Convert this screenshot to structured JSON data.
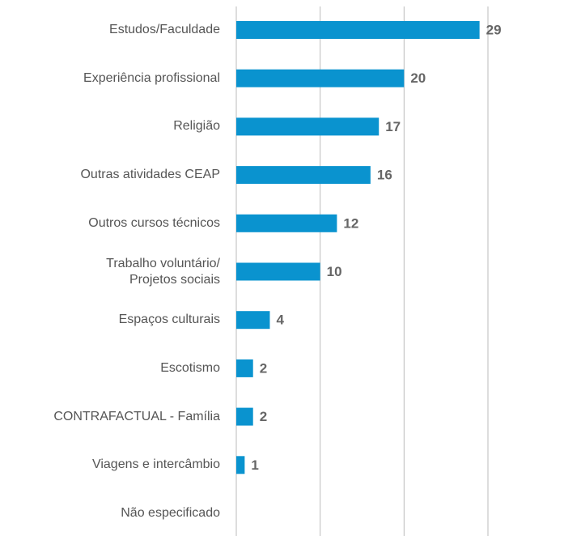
{
  "chart_data": {
    "type": "bar",
    "orientation": "horizontal",
    "categories": [
      "Estudos/Faculdade",
      "Experiência profissional",
      "Religião",
      "Outras atividades CEAP",
      "Outros cursos técnicos",
      "Trabalho voluntário/\nProjetos sociais",
      "Espaços culturais",
      "Escotismo",
      "CONTRAFACTUAL - Família",
      "Viagens e intercâmbio",
      "Não especificado"
    ],
    "values": [
      29,
      20,
      17,
      16,
      12,
      10,
      4,
      2,
      2,
      1,
      null
    ],
    "color": "#0a93cf",
    "xlim": [
      0,
      30
    ],
    "xticks": [
      0,
      10,
      20,
      30
    ],
    "grid": true
  }
}
